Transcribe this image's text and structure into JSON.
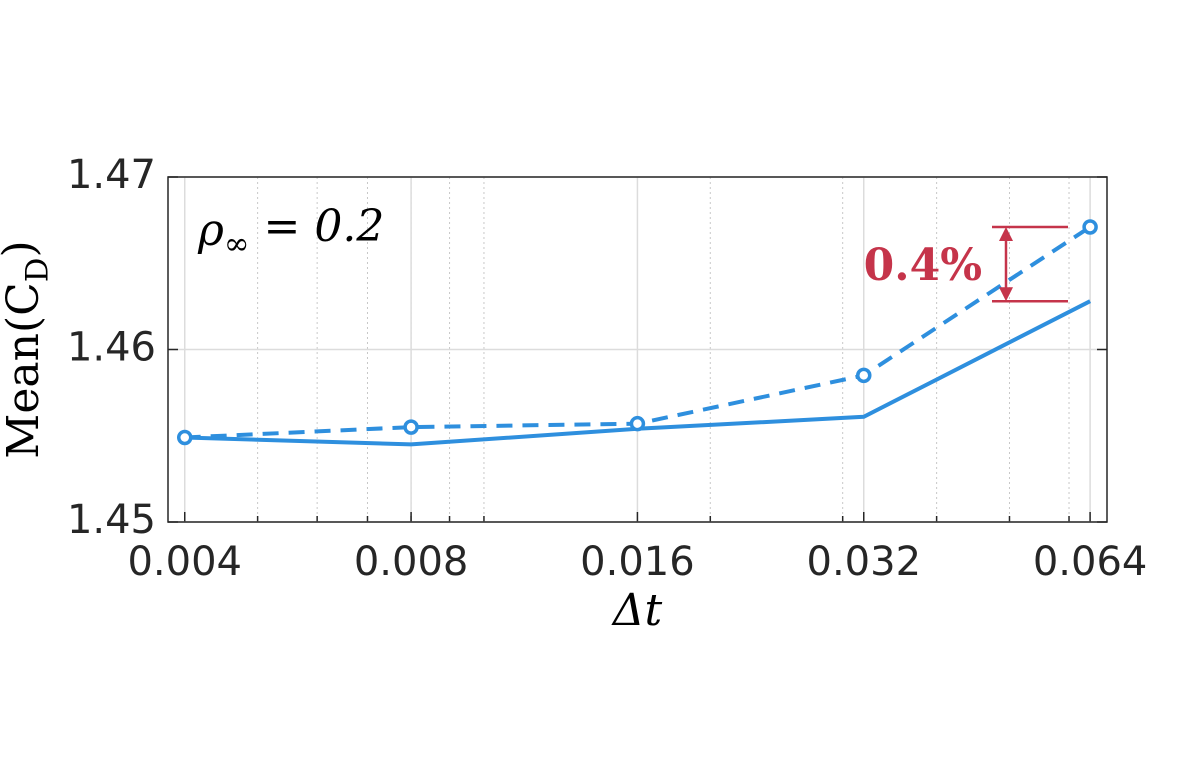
{
  "chart_data": {
    "type": "line",
    "xlabel": "Δt",
    "ylabel": "Mean(C_D)",
    "annotations": [
      "ρ_∞ = 0.2",
      "0.4%"
    ],
    "annotation_color": "#c5344a",
    "x": [
      0.004,
      0.008,
      0.016,
      0.032,
      0.064
    ],
    "xscale": "log",
    "xlim": [
      0.0038,
      0.0674
    ],
    "xticks": [
      0.004,
      0.008,
      0.016,
      0.032,
      0.064
    ],
    "ylim": [
      1.45,
      1.47
    ],
    "yticks": [
      1.45,
      1.46,
      1.47
    ],
    "grid": true,
    "minor_grid": true,
    "series": [
      {
        "color": "#2e8fde",
        "linestyle": "solid",
        "marker": "none",
        "values": [
          1.4549,
          1.4545,
          1.4554,
          1.4561,
          1.4628
        ]
      },
      {
        "color": "#2e8fde",
        "linestyle": "dashed",
        "marker": "circle",
        "values": [
          1.4549,
          1.4555,
          1.4557,
          1.4585,
          1.4671
        ]
      }
    ]
  }
}
